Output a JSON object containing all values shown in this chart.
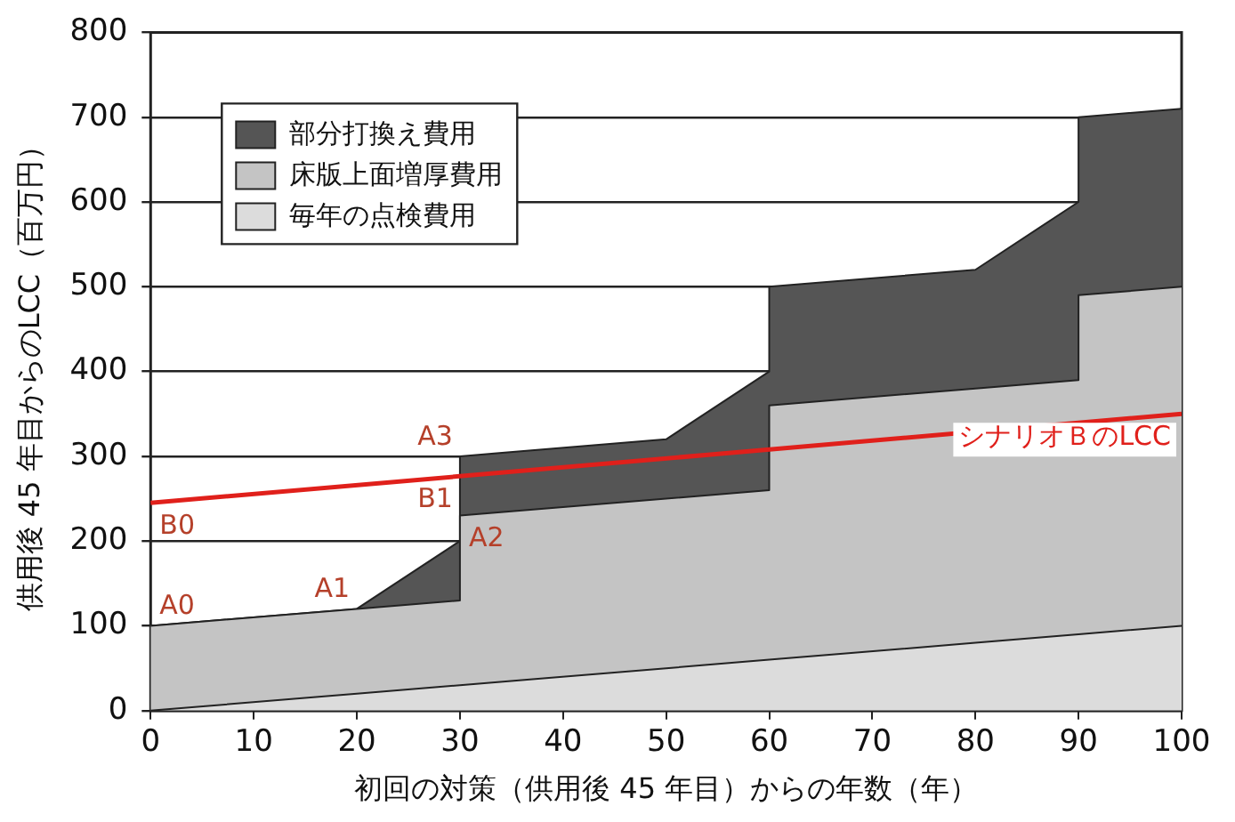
{
  "chart_data": {
    "type": "area",
    "stacked": true,
    "xlabel": "初回の対策（供用後 45 年目）からの年数（年）",
    "ylabel": "供用後 45 年目からのLCC（百万円）",
    "x": [
      0,
      20,
      30,
      30,
      50,
      60,
      60,
      80,
      90,
      90,
      100
    ],
    "series": [
      {
        "name": "毎年の点検費用",
        "color": "#dcdcdc",
        "values": [
          0,
          20,
          30,
          30,
          50,
          60,
          60,
          80,
          90,
          90,
          100
        ]
      },
      {
        "name": "床版上面増厚費用",
        "color": "#c4c4c4",
        "values": [
          100,
          100,
          100,
          200,
          200,
          200,
          300,
          300,
          300,
          400,
          400
        ]
      },
      {
        "name": "部分打換え費用",
        "color": "#555555",
        "values": [
          0,
          0,
          70,
          70,
          70,
          140,
          140,
          140,
          210,
          210,
          210
        ]
      },
      {
        "name": "シナリオＢのLCC",
        "type": "line",
        "color": "#e0201b",
        "x": [
          0,
          100
        ],
        "values": [
          245,
          350
        ]
      }
    ],
    "xlim": [
      0,
      100
    ],
    "xticks": [
      0,
      10,
      20,
      30,
      40,
      50,
      60,
      70,
      80,
      90,
      100
    ],
    "ylim": [
      0,
      800
    ],
    "yticks": [
      0,
      100,
      200,
      300,
      400,
      500,
      600,
      700,
      800
    ],
    "grid": "y",
    "legend": "top left",
    "marker": "none",
    "annotations": [
      {
        "text": "A0",
        "x": 0,
        "y": 100
      },
      {
        "text": "A1",
        "x": 20,
        "y": 120
      },
      {
        "text": "A2",
        "x": 30,
        "y": 230
      },
      {
        "text": "A3",
        "x": 30,
        "y": 300
      },
      {
        "text": "B0",
        "x": 0,
        "y": 245
      },
      {
        "text": "B1",
        "x": 30,
        "y": 277
      }
    ]
  }
}
